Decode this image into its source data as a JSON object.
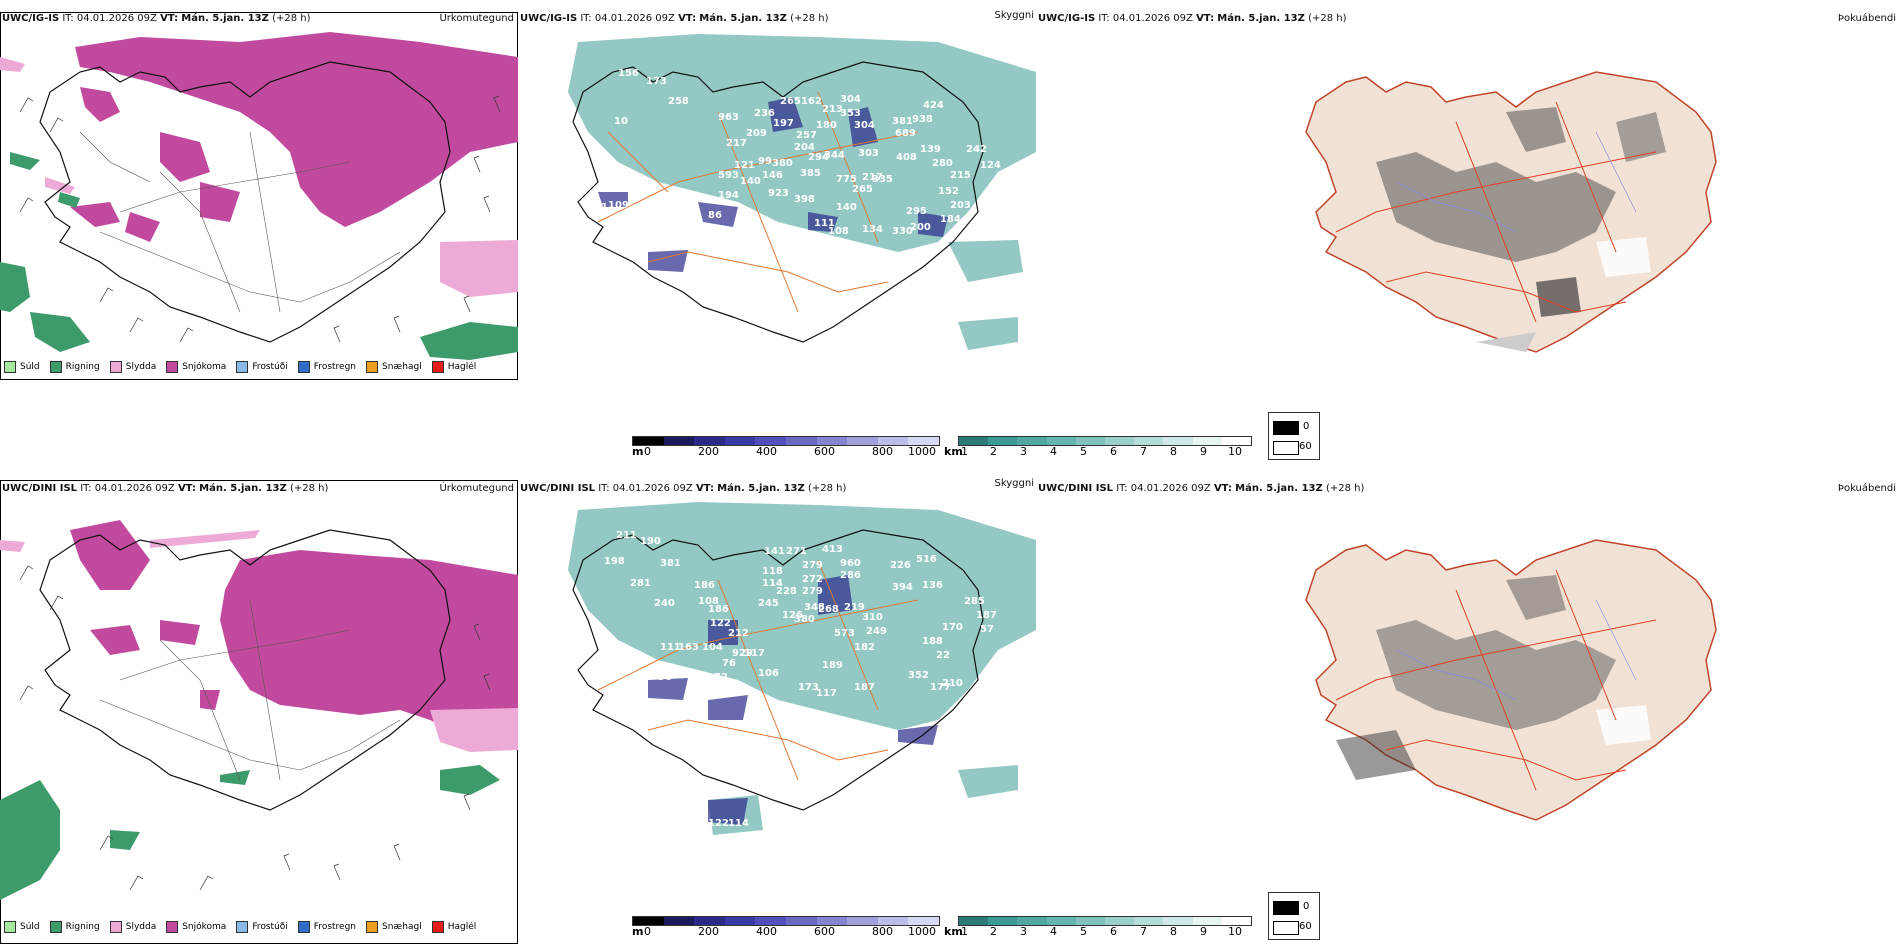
{
  "colors": {
    "sudd": "#a6e8a0",
    "rigning": "#3d9a6a",
    "slydda": "#eeaad6",
    "snjokoma": "#c24a9e",
    "frostudi": "#8ab8e8",
    "frostregn": "#2e6ec8",
    "snaehagl": "#f0a020",
    "haglel": "#e41a1c",
    "teal": "#3a9a94",
    "coast": "#111111",
    "roads": "#e07830",
    "land": "#f2e2d6"
  },
  "rows": [
    {
      "model": "UWC/IG-IS",
      "it_label": "IT:",
      "it_value": "04.01.2026 09Z",
      "vt_label": "VT:",
      "vt_value": "Mán. 5.jan. 13Z",
      "lead": "(+28 h)"
    },
    {
      "model": "UWC/DINI ISL",
      "it_label": "IT:",
      "it_value": "04.01.2026 09Z",
      "vt_label": "VT:",
      "vt_value": "Mán. 5.jan. 13Z",
      "lead": "(+28 h)"
    }
  ],
  "titles": {
    "precip": "Úrkomutegund",
    "cloud": "Skyggni",
    "fog": "Þokuábendi"
  },
  "precip_legend": [
    {
      "label": "Súld",
      "color": "#a6e8a0"
    },
    {
      "label": "Rigning",
      "color": "#3d9a6a"
    },
    {
      "label": "Slydda",
      "color": "#eeaad6"
    },
    {
      "label": "Snjókoma",
      "color": "#c24a9e"
    },
    {
      "label": "Frostúði",
      "color": "#8ab8e8"
    },
    {
      "label": "Frostregn",
      "color": "#2e6ec8"
    },
    {
      "label": "Snæhagl",
      "color": "#f0a020"
    },
    {
      "label": "Haglél",
      "color": "#e41a1c"
    }
  ],
  "ceiling_bar": {
    "unit": "m",
    "ticks": [
      "0",
      "200",
      "400",
      "600",
      "800",
      "1000"
    ]
  },
  "visibility_bar": {
    "unit": "km",
    "ticks": [
      "1",
      "2",
      "3",
      "4",
      "5",
      "6",
      "7",
      "8",
      "9",
      "10"
    ]
  },
  "fog_legend": {
    "black": "0",
    "white": "60"
  },
  "labels_top": [
    "156",
    "173",
    "258",
    "10",
    "963",
    "236",
    "265",
    "162",
    "213",
    "304",
    "353",
    "424",
    "938",
    "381",
    "689",
    "304",
    "180",
    "197",
    "209",
    "217",
    "257",
    "204",
    "344",
    "294",
    "380",
    "99",
    "121",
    "593",
    "140",
    "146",
    "385",
    "303",
    "408",
    "139",
    "280",
    "215",
    "242",
    "124",
    "194",
    "923",
    "398",
    "775",
    "217",
    "335",
    "265",
    "152",
    "203",
    "184",
    "140",
    "295",
    "200",
    "330",
    "134",
    "108",
    "111",
    "95",
    "86",
    "85",
    "87",
    "84",
    "73",
    "145",
    "109",
    "81",
    "230",
    "261",
    "86"
  ],
  "labels_bottom": [
    "211",
    "190",
    "198",
    "381",
    "281",
    "240",
    "186",
    "141",
    "271",
    "413",
    "960",
    "226",
    "516",
    "286",
    "118",
    "279",
    "272",
    "114",
    "228",
    "279",
    "245",
    "126",
    "348",
    "380",
    "268",
    "219",
    "310",
    "394",
    "136",
    "285",
    "187",
    "170",
    "188",
    "57",
    "122",
    "212",
    "573",
    "249",
    "182",
    "117",
    "22",
    "187",
    "108",
    "186",
    "929",
    "104",
    "163",
    "111",
    "189",
    "352",
    "177",
    "210",
    "76",
    "72",
    "106",
    "173",
    "117",
    "96",
    "104",
    "53",
    "20",
    "114",
    "122",
    "82",
    "79",
    "76"
  ]
}
